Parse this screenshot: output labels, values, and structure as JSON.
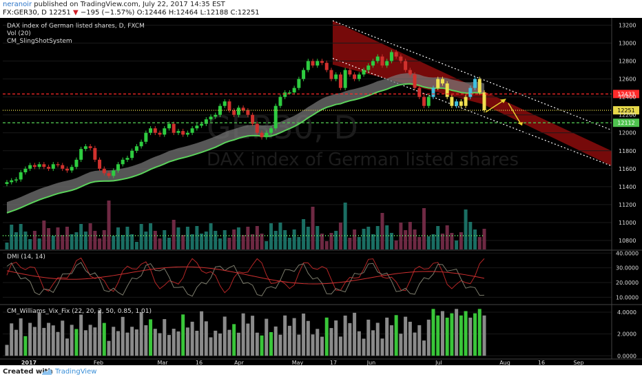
{
  "header": {
    "user": "neranoir",
    "published": " published on TradingView.com, July 22, 2017 14:35 EST",
    "symbol_line": "FX:GER30, D",
    "last": "12251",
    "change_arrow": "▼",
    "change": "−195 (−1.57%)",
    "ohlc": "O:12446 H:12464 L:12188 C:12251"
  },
  "legend": {
    "title": "DAX index of German listed shares, D, FXCM",
    "vol": "Vol (20)",
    "indicator": "CM_SlingShotSystem"
  },
  "watermark": {
    "line1": "GER30, D",
    "line2": "DAX index of German listed shares"
  },
  "footer": {
    "created": "Created with",
    "brand": "TradingView"
  },
  "colors": {
    "up": "#2ecc40",
    "down": "#d0312d",
    "channel": "#8b0c0c",
    "ema_band": "#7a7a7a",
    "ema_line": "#5bd35b",
    "level_red": "#ff2a2a",
    "level_yellow": "#e6d84a",
    "level_green": "#4fc24f",
    "arrow": "#e6d030"
  },
  "chart_data": [
    {
      "type": "candlestick",
      "title": "DAX index of German listed shares, D, FXCM",
      "x_ticks": [
        "2017",
        "Feb",
        "Mar",
        "16",
        "Apr",
        "May",
        "17",
        "Jun",
        "Jul",
        "Aug",
        "16",
        "Sep"
      ],
      "y_ticks": [
        10800,
        11000,
        11200,
        11400,
        11600,
        11800,
        12000,
        12200,
        12400,
        12600,
        12800,
        13000,
        13200
      ],
      "ylim": [
        10700,
        13250
      ],
      "price_levels": [
        {
          "value": 12433,
          "label": "12433",
          "color": "red"
        },
        {
          "value": 12251,
          "label": "12251",
          "color": "yellow"
        },
        {
          "value": 12112,
          "label": "12112",
          "color": "green"
        }
      ],
      "closes": [
        11450,
        11470,
        11480,
        11560,
        11600,
        11640,
        11620,
        11650,
        11620,
        11600,
        11650,
        11640,
        11600,
        11580,
        11620,
        11700,
        11820,
        11850,
        11830,
        11700,
        11600,
        11550,
        11520,
        11580,
        11650,
        11700,
        11720,
        11800,
        11850,
        11900,
        12000,
        12050,
        12000,
        11980,
        12050,
        12100,
        12000,
        12020,
        11980,
        12000,
        12050,
        12080,
        12100,
        12150,
        12180,
        12200,
        12300,
        12350,
        12250,
        12200,
        12280,
        12250,
        12200,
        12100,
        12000,
        11950,
        12000,
        12050,
        12300,
        12400,
        12450,
        12450,
        12500,
        12600,
        12700,
        12800,
        12750,
        12800,
        12780,
        12700,
        12600,
        12650,
        12500,
        12700,
        12650,
        12600,
        12650,
        12700,
        12750,
        12800,
        12850,
        12750,
        12800,
        12900,
        12850,
        12800,
        12700,
        12650,
        12500,
        12400,
        12300,
        12400,
        12500,
        12600,
        12550,
        12400,
        12300,
        12350,
        12300,
        12400,
        12500,
        12600,
        12450,
        12251
      ],
      "volume_ylim": [
        0,
        100
      ]
    },
    {
      "type": "line",
      "title": "DMI (14, 14)",
      "y_ticks": [
        10,
        20,
        30,
        40
      ],
      "ylim": [
        5,
        42
      ]
    },
    {
      "type": "bar",
      "title": "CM_Williams_Vix_Fix (22, 20, 2, 50, 0.85, 1.01)",
      "y_ticks": [
        0,
        2,
        4
      ],
      "ylim": [
        -0.3,
        4.7
      ]
    }
  ]
}
